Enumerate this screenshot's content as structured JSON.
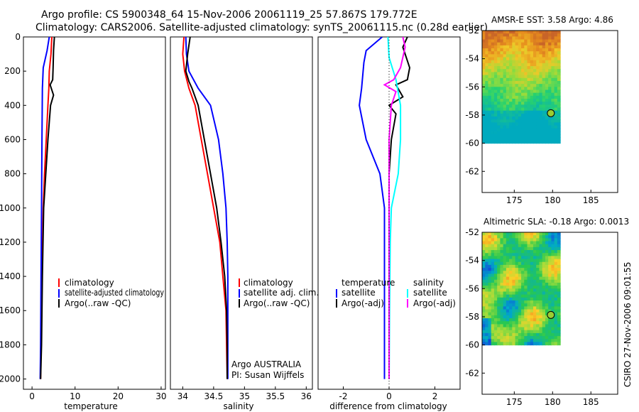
{
  "header": {
    "title_line1": "Argo profile: CS 5900348_64 15-Nov-2006 20061119_25 57.867S 179.772E",
    "title_line2": "Climatology: CARS2006. Satellite-adjusted climatology: synTS_20061115.nc (0.28d earlier)"
  },
  "side_label": "CSIRO 27-Nov-2006 09:01:55",
  "colors": {
    "climatology": "#ff0000",
    "satellite": "#0000ff",
    "argo": "#000000",
    "sal_satellite": "#00ffff",
    "sal_argo": "#ff00ff"
  },
  "chart_data": [
    {
      "id": "temperature",
      "type": "line",
      "xlabel": "temperature",
      "ylabel": "",
      "xlim": [
        -2,
        31
      ],
      "ylim": [
        2060,
        0
      ],
      "xticks": [
        "0",
        "10",
        "20",
        "30"
      ],
      "yticks": [
        "0",
        "200",
        "400",
        "600",
        "800",
        "1000",
        "1200",
        "1400",
        "1600",
        "1800",
        "2000"
      ],
      "legend": [
        "climatology",
        "satellite-adjusted climatology",
        "Argo(..raw -QC)"
      ],
      "series": [
        {
          "name": "climatology",
          "color": "#ff0000",
          "points": [
            [
              4.6,
              0
            ],
            [
              4.4,
              100
            ],
            [
              4.0,
              200
            ],
            [
              3.9,
              300
            ],
            [
              3.7,
              400
            ],
            [
              3.3,
              600
            ],
            [
              2.9,
              800
            ],
            [
              2.6,
              1000
            ],
            [
              2.3,
              1400
            ],
            [
              2.1,
              1800
            ],
            [
              2.0,
              2000
            ]
          ]
        },
        {
          "name": "satellite-adjusted climatology",
          "color": "#0000ff",
          "points": [
            [
              4.0,
              0
            ],
            [
              3.5,
              80
            ],
            [
              2.6,
              180
            ],
            [
              2.4,
              300
            ],
            [
              2.3,
              600
            ],
            [
              2.2,
              1000
            ],
            [
              2.1,
              1400
            ],
            [
              2.0,
              1800
            ],
            [
              1.9,
              2000
            ]
          ]
        },
        {
          "name": "Argo(..raw -QC)",
          "color": "#000000",
          "points": [
            [
              5.2,
              0
            ],
            [
              5.0,
              80
            ],
            [
              4.9,
              180
            ],
            [
              4.8,
              250
            ],
            [
              4.2,
              280
            ],
            [
              5.0,
              340
            ],
            [
              4.3,
              400
            ],
            [
              3.7,
              600
            ],
            [
              3.2,
              800
            ],
            [
              2.7,
              1000
            ],
            [
              2.4,
              1400
            ],
            [
              2.2,
              1800
            ],
            [
              2.0,
              2000
            ]
          ]
        }
      ]
    },
    {
      "id": "salinity",
      "type": "line",
      "xlabel": "salinity",
      "ylabel": "",
      "xlim": [
        33.8,
        36.1
      ],
      "ylim": [
        2060,
        0
      ],
      "xticks": [
        "34",
        "34.5",
        "35",
        "35.5",
        "36"
      ],
      "yticks": [],
      "legend": [
        "climatology",
        "satellite adj. clim.",
        "Argo(..raw -QC)"
      ],
      "annotation": [
        "Argo AUSTRALIA",
        "PI: Susan Wijffels"
      ],
      "series": [
        {
          "name": "climatology",
          "color": "#ff0000",
          "points": [
            [
              34.02,
              0
            ],
            [
              34.0,
              100
            ],
            [
              34.03,
              200
            ],
            [
              34.1,
              300
            ],
            [
              34.2,
              400
            ],
            [
              34.3,
              600
            ],
            [
              34.4,
              800
            ],
            [
              34.5,
              1000
            ],
            [
              34.6,
              1200
            ],
            [
              34.65,
              1400
            ],
            [
              34.7,
              1600
            ],
            [
              34.71,
              1800
            ],
            [
              34.72,
              2000
            ]
          ]
        },
        {
          "name": "satellite adj. clim.",
          "color": "#0000ff",
          "points": [
            [
              34.05,
              0
            ],
            [
              34.06,
              100
            ],
            [
              34.1,
              200
            ],
            [
              34.25,
              300
            ],
            [
              34.45,
              400
            ],
            [
              34.58,
              600
            ],
            [
              34.65,
              800
            ],
            [
              34.7,
              1000
            ],
            [
              34.72,
              1200
            ],
            [
              34.73,
              1400
            ],
            [
              34.73,
              1800
            ],
            [
              34.73,
              2000
            ]
          ]
        },
        {
          "name": "Argo(..raw -QC)",
          "color": "#000000",
          "points": [
            [
              34.12,
              0
            ],
            [
              34.08,
              100
            ],
            [
              34.05,
              200
            ],
            [
              34.1,
              260
            ],
            [
              34.15,
              300
            ],
            [
              34.25,
              400
            ],
            [
              34.35,
              600
            ],
            [
              34.45,
              800
            ],
            [
              34.55,
              1000
            ],
            [
              34.62,
              1200
            ],
            [
              34.68,
              1400
            ],
            [
              34.71,
              1600
            ],
            [
              34.72,
              1800
            ],
            [
              34.72,
              2000
            ]
          ]
        }
      ]
    },
    {
      "id": "difference",
      "type": "line",
      "xlabel": "difference from climatology",
      "ylabel": "",
      "xlim": [
        -3.1,
        3.1
      ],
      "ylim": [
        2060,
        0
      ],
      "xticks": [
        "-2",
        "0",
        "2"
      ],
      "yticks": [],
      "legend_title_left": "temperature",
      "legend_title_right": "salinity",
      "legend": [
        "satellite",
        "Argo(-adj)",
        "satellite",
        "Argo(-adj)"
      ],
      "series": [
        {
          "name": "temperature satellite",
          "color": "#0000ff",
          "points": [
            [
              -0.3,
              0
            ],
            [
              -1.0,
              80
            ],
            [
              -1.1,
              150
            ],
            [
              -1.2,
              300
            ],
            [
              -1.3,
              400
            ],
            [
              -1.0,
              600
            ],
            [
              -0.4,
              800
            ],
            [
              -0.2,
              1000
            ],
            [
              -0.2,
              1400
            ],
            [
              -0.2,
              2000
            ]
          ]
        },
        {
          "name": "temperature Argo(-adj)",
          "color": "#000000",
          "points": [
            [
              0.8,
              0
            ],
            [
              0.6,
              60
            ],
            [
              0.9,
              180
            ],
            [
              0.8,
              250
            ],
            [
              0.3,
              280
            ],
            [
              0.6,
              350
            ],
            [
              0.0,
              400
            ],
            [
              0.3,
              450
            ],
            [
              0.1,
              600
            ],
            [
              0.0,
              800
            ],
            [
              0.0,
              1000
            ],
            [
              0.0,
              2000
            ]
          ]
        },
        {
          "name": "salinity satellite",
          "color": "#00ffff",
          "points": [
            [
              -0.05,
              0
            ],
            [
              0.0,
              120
            ],
            [
              0.3,
              250
            ],
            [
              0.5,
              400
            ],
            [
              0.5,
              600
            ],
            [
              0.4,
              800
            ],
            [
              0.1,
              1000
            ],
            [
              0.05,
              1200
            ],
            [
              0.02,
              1600
            ],
            [
              0.0,
              2000
            ]
          ]
        },
        {
          "name": "salinity Argo(-adj)",
          "color": "#ff00ff",
          "points": [
            [
              0.6,
              0
            ],
            [
              0.7,
              60
            ],
            [
              0.5,
              180
            ],
            [
              0.2,
              250
            ],
            [
              -0.2,
              280
            ],
            [
              0.3,
              320
            ],
            [
              0.1,
              400
            ],
            [
              0.0,
              600
            ],
            [
              0.0,
              800
            ],
            [
              0.0,
              1000
            ],
            [
              0.0,
              2000
            ]
          ]
        }
      ]
    },
    {
      "id": "sst_map",
      "type": "heatmap",
      "title": "AMSR-E SST: 3.58 Argo: 4.86",
      "xlim": [
        170.8,
        188.5
      ],
      "ylim": [
        -63.5,
        -52
      ],
      "xticks": [
        "175",
        "180",
        "185"
      ],
      "yticks": [
        "-52",
        "-54",
        "-56",
        "-58",
        "-60",
        "-62"
      ],
      "marker": {
        "lon": 179.772,
        "lat": -57.867
      }
    },
    {
      "id": "sla_map",
      "type": "heatmap",
      "title": "Altimetric SLA: -0.18 Argo: 0.0013",
      "xlim": [
        170.8,
        188.5
      ],
      "ylim": [
        -63.5,
        -52
      ],
      "xticks": [
        "175",
        "180",
        "185"
      ],
      "yticks": [
        "-52",
        "-54",
        "-56",
        "-58",
        "-60",
        "-62"
      ],
      "marker": {
        "lon": 179.772,
        "lat": -57.867
      }
    }
  ]
}
